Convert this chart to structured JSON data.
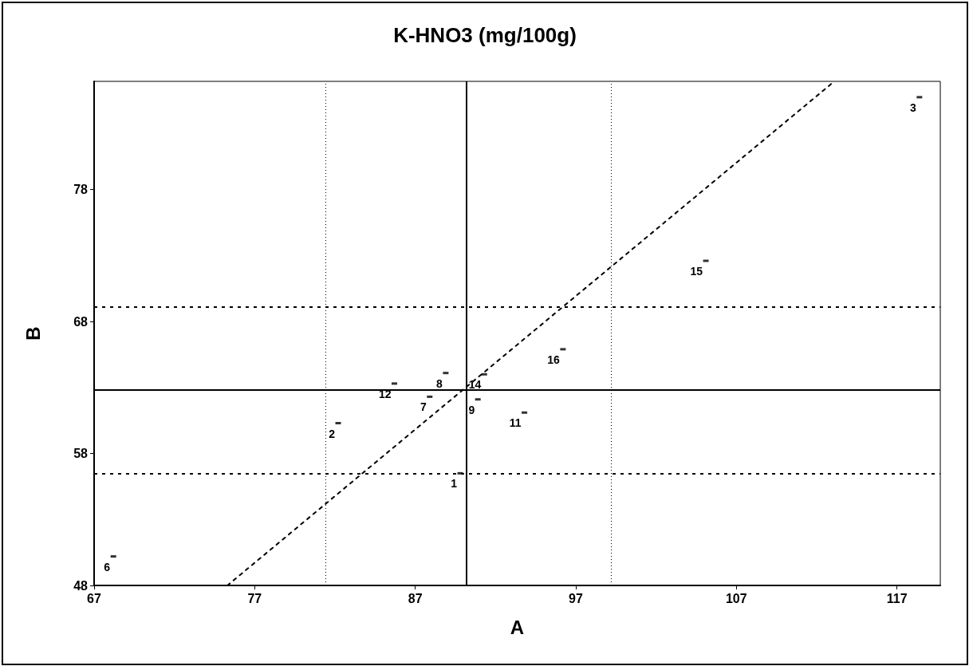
{
  "chart_data": {
    "type": "scatter",
    "title": "K-HNO3 (mg/100g)",
    "xlabel": "A",
    "ylabel": "B",
    "xlim": [
      67,
      119.7
    ],
    "ylim": [
      48,
      86.2
    ],
    "xticks": [
      67,
      77,
      87,
      97,
      107,
      117
    ],
    "yticks": [
      48,
      58,
      68,
      78
    ],
    "grid": false,
    "series": [
      {
        "color": "#000000",
        "x": [
          89.8,
          82.2,
          118.4,
          68.2,
          87.9,
          88.9,
          90.9,
          93.8,
          85.7,
          91.3,
          105.1,
          96.2
        ],
        "values": [
          56.5,
          60.3,
          85.0,
          50.2,
          62.3,
          64.1,
          62.1,
          61.1,
          63.3,
          64.0,
          72.6,
          65.9
        ]
      },
      {
        "type": "line",
        "color": "#000000",
        "line_style": "dashed",
        "x": [
          75.3,
          113.1
        ],
        "values": [
          48,
          86.2
        ]
      }
    ],
    "ref_lines": [
      {
        "axis": "x",
        "value": 90.2,
        "line_style": "solid",
        "color": "#000000"
      },
      {
        "axis": "x",
        "value": 81.4,
        "line_style": "dotted",
        "color": "#000000"
      },
      {
        "axis": "x",
        "value": 99.2,
        "line_style": "dotted",
        "color": "#000000"
      },
      {
        "axis": "y",
        "value": 62.8,
        "line_style": "solid",
        "color": "#000000"
      },
      {
        "axis": "y",
        "value": 69.1,
        "line_style": "dashed",
        "color": "#000000"
      },
      {
        "axis": "y",
        "value": 56.5,
        "line_style": "dashed",
        "color": "#000000"
      }
    ],
    "annotations": [
      {
        "text": "1",
        "x": 89.8,
        "y": 56.5
      },
      {
        "text": "2",
        "x": 82.2,
        "y": 60.3
      },
      {
        "text": "3",
        "x": 118.4,
        "y": 85.0
      },
      {
        "text": "6",
        "x": 68.2,
        "y": 50.2
      },
      {
        "text": "7",
        "x": 87.9,
        "y": 62.3
      },
      {
        "text": "8",
        "x": 88.9,
        "y": 64.1
      },
      {
        "text": "9",
        "x": 90.9,
        "y": 62.1
      },
      {
        "text": "11",
        "x": 93.8,
        "y": 61.1
      },
      {
        "text": "12",
        "x": 85.7,
        "y": 63.3
      },
      {
        "text": "14",
        "x": 91.3,
        "y": 64.0
      },
      {
        "text": "15",
        "x": 105.1,
        "y": 72.6
      },
      {
        "text": "16",
        "x": 96.2,
        "y": 65.9
      }
    ]
  }
}
